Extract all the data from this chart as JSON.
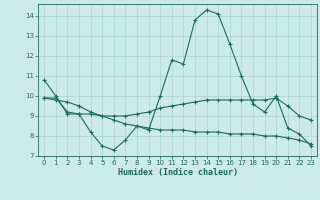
{
  "xlabel": "Humidex (Indice chaleur)",
  "background_color": "#cceae8",
  "grid_color": "#aad4d0",
  "line_color": "#1a6b5a",
  "xlim": [
    -0.5,
    23.5
  ],
  "ylim": [
    7,
    14.6
  ],
  "yticks": [
    7,
    8,
    9,
    10,
    11,
    12,
    13,
    14
  ],
  "xticks": [
    0,
    1,
    2,
    3,
    4,
    5,
    6,
    7,
    8,
    9,
    10,
    11,
    12,
    13,
    14,
    15,
    16,
    17,
    18,
    19,
    20,
    21,
    22,
    23
  ],
  "line1_x": [
    0,
    1,
    2,
    3,
    4,
    5,
    6,
    7,
    8,
    9,
    10,
    11,
    12,
    13,
    14,
    15,
    16,
    17,
    18,
    19,
    20,
    21,
    22,
    23
  ],
  "line1_y": [
    10.8,
    10.0,
    9.1,
    9.1,
    8.2,
    7.5,
    7.3,
    7.8,
    8.5,
    8.3,
    10.0,
    11.8,
    11.6,
    13.8,
    14.3,
    14.1,
    12.6,
    11.0,
    9.6,
    9.2,
    10.0,
    8.4,
    8.1,
    7.5
  ],
  "line2_x": [
    0,
    1,
    2,
    3,
    4,
    5,
    6,
    7,
    8,
    9,
    10,
    11,
    12,
    13,
    14,
    15,
    16,
    17,
    18,
    19,
    20,
    21,
    22,
    23
  ],
  "line2_y": [
    9.9,
    9.9,
    9.2,
    9.1,
    9.1,
    9.0,
    9.0,
    9.0,
    9.1,
    9.2,
    9.4,
    9.5,
    9.6,
    9.7,
    9.8,
    9.8,
    9.8,
    9.8,
    9.8,
    9.8,
    9.9,
    9.5,
    9.0,
    8.8
  ],
  "line3_x": [
    0,
    1,
    2,
    3,
    4,
    5,
    6,
    7,
    8,
    9,
    10,
    11,
    12,
    13,
    14,
    15,
    16,
    17,
    18,
    19,
    20,
    21,
    22,
    23
  ],
  "line3_y": [
    9.9,
    9.8,
    9.7,
    9.5,
    9.2,
    9.0,
    8.8,
    8.6,
    8.5,
    8.4,
    8.3,
    8.3,
    8.3,
    8.2,
    8.2,
    8.2,
    8.1,
    8.1,
    8.1,
    8.0,
    8.0,
    7.9,
    7.8,
    7.6
  ]
}
